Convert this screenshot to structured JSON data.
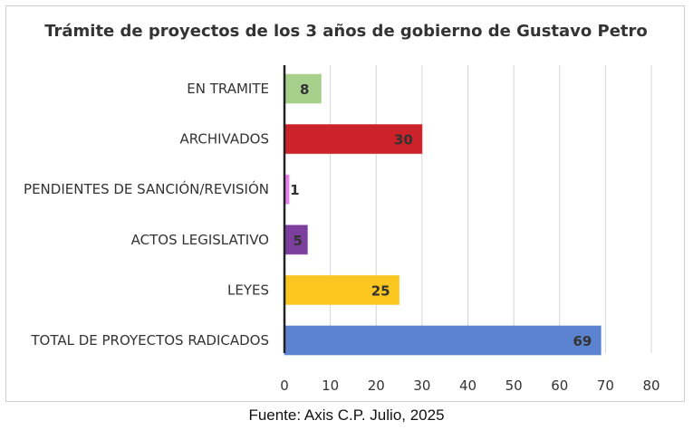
{
  "chart_data": {
    "type": "bar",
    "orientation": "horizontal",
    "title": "Trámite de proyectos de los 3 años de gobierno de Gustavo Petro",
    "categories": [
      "EN TRAMITE",
      "ARCHIVADOS",
      "PENDIENTES DE SANCIÓN/REVISIÓN",
      "ACTOS LEGISLATIVO",
      "LEYES",
      "TOTAL DE PROYECTOS RADICADOS"
    ],
    "values": [
      8,
      30,
      1,
      5,
      25,
      69
    ],
    "colors": [
      "#a8d08d",
      "#cc2229",
      "#e87ff0",
      "#7c3f9e",
      "#fbc620",
      "#5b83cf"
    ],
    "xlim": [
      0,
      80
    ],
    "xticks": [
      0,
      10,
      20,
      30,
      40,
      50,
      60,
      70,
      80
    ],
    "grid": "vertical",
    "legend": "none",
    "data_labels": true
  },
  "caption": "Fuente: Axis C.P. Julio, 2025"
}
